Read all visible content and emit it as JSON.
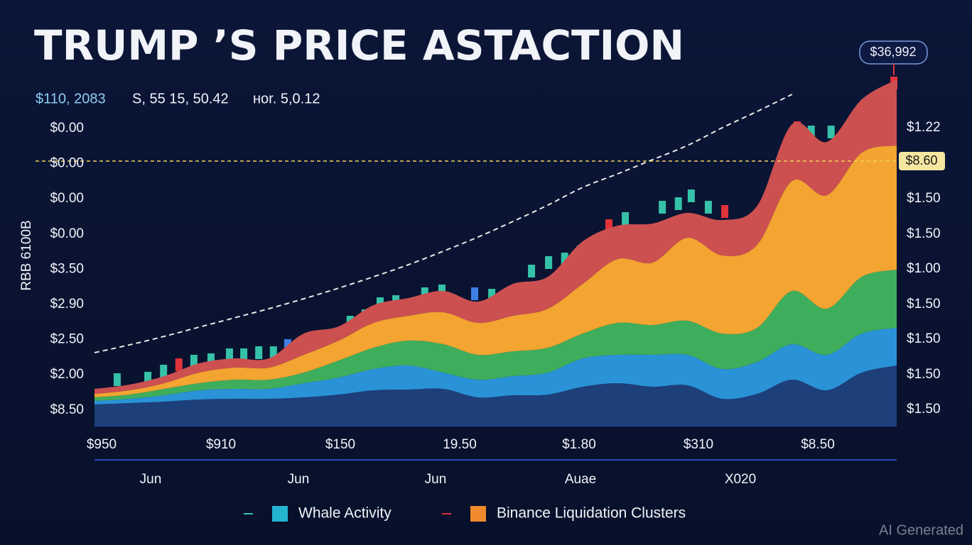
{
  "chart_data": {
    "type": "stacked_area",
    "title": "TRUMP ’S PRICE ASTACTION",
    "stats": [
      "$110, 2083",
      "S, 55 15, 50.42",
      "нor. 5,0.12"
    ],
    "y_axis_title": "RBB 6100B",
    "left_axis_labels": [
      "$0.00",
      "$0.00",
      "$0.00",
      "$0.00",
      "$3.50",
      "$2.90",
      "$2.50",
      "$2.00",
      "$8.50"
    ],
    "right_axis_labels": [
      "$1.22",
      "$1.50",
      "$1.50",
      "$1.00",
      "$1.50",
      "$1.50",
      "$1.50",
      "$1.50"
    ],
    "x_axis_labels": [
      "$950",
      "$910",
      "$150",
      "19.50",
      "$1.80",
      "$310",
      "$8.50"
    ],
    "x_axis_months": [
      "Jun",
      "Jun",
      "Jun",
      "Auae",
      "X020"
    ],
    "price_badge": "$36,992",
    "reference_line": {
      "value": 74.6,
      "label": "$8.60",
      "color": "#f2d35a"
    },
    "xlim": [
      0,
      23
    ],
    "ylim": [
      0,
      100
    ],
    "x": [
      0,
      1,
      2,
      3,
      4,
      5,
      6,
      7,
      8,
      9,
      10,
      11,
      12,
      13,
      14,
      15,
      16,
      17,
      18,
      19,
      20,
      21,
      22,
      23
    ],
    "series": [
      {
        "color": "#1d3f7a",
        "values": [
          6,
          6.4,
          6.8,
          7.4,
          7.6,
          7.6,
          8,
          8.8,
          10,
          10.2,
          10.4,
          8,
          8.6,
          8.8,
          11,
          12,
          11,
          11.4,
          7.6,
          9,
          13,
          10,
          15,
          17
        ]
      },
      {
        "color": "#2a92d6",
        "values": [
          1,
          1.2,
          1.8,
          2.6,
          2.8,
          2.8,
          4,
          4.8,
          6,
          6.8,
          4.6,
          5,
          5.4,
          6.2,
          8,
          8,
          9,
          8.6,
          8.4,
          9,
          10,
          10,
          11,
          10.6
        ]
      },
      {
        "color": "#3fae5c",
        "values": [
          1,
          1.2,
          1.8,
          2,
          2.6,
          2.6,
          3,
          4.8,
          6,
          7,
          8,
          7,
          7,
          7,
          7,
          9,
          8.4,
          9.6,
          10,
          9.6,
          15,
          13,
          16,
          16.4
        ]
      },
      {
        "color": "#f3a431",
        "values": [
          1,
          1.2,
          1.6,
          3,
          3.4,
          3.4,
          5,
          5.6,
          7,
          7,
          9,
          9,
          10,
          11,
          14,
          18,
          17.6,
          23.4,
          22,
          23.4,
          31,
          32,
          35,
          35
        ]
      },
      {
        "color": "#cc5050",
        "values": [
          1.4,
          1.6,
          2,
          2.6,
          2.6,
          2.6,
          6,
          4,
          5,
          5,
          6,
          6,
          9,
          9,
          12,
          9.4,
          11,
          7,
          10,
          11,
          16,
          15,
          15,
          18.6
        ]
      }
    ],
    "trend": {
      "color": "#e8e8e8",
      "values": [
        20.6,
        22.8,
        25.2,
        27.8,
        30.4,
        33,
        35.8,
        38.8,
        42,
        45.4,
        49.2,
        53.2,
        57.6,
        62.2,
        67.2,
        71,
        75,
        79,
        84,
        88.6,
        93.4,
        null,
        null,
        null
      ]
    },
    "candles": [
      {
        "color": "#35c2a8",
        "x": [
          0.65,
          1.53,
          1.98,
          2.85,
          3.34,
          3.87,
          4.28,
          4.71,
          5.13,
          7.33,
          7.76,
          8.19,
          8.64,
          9.47,
          9.96,
          11.39,
          12.53,
          13.02,
          13.48,
          13.93,
          15.22,
          16.28,
          16.74,
          17.11,
          17.6,
          20.55,
          21.12,
          21.57
        ],
        "values": [
          13,
          13.4,
          15.4,
          18.2,
          18.6,
          20,
          20,
          20.6,
          20.6,
          29.2,
          31,
          34.4,
          35,
          37.2,
          38,
          36.8,
          43.6,
          46,
          47,
          49,
          58.4,
          61.6,
          62.6,
          64.8,
          61.6,
          82.8,
          82.8,
          82
        ]
      },
      {
        "color": "#e0333a",
        "x": [
          2.42,
          14.75,
          18.07,
          20.15,
          22.06,
          22.92
        ],
        "values": [
          17.2,
          56.4,
          60.4,
          84,
          89.4,
          96.6
        ]
      },
      {
        "color": "#3f7fe6",
        "x": [
          5.54,
          10.9
        ],
        "values": [
          22.6,
          37.2
        ]
      }
    ],
    "legend": [
      {
        "name": "Whale Activity",
        "color": "#23b4d2",
        "dash": "#35c2a8"
      },
      {
        "name": "Binance Liquidation Clusters",
        "color": "#f08a2c",
        "dash": "#e0333a"
      }
    ],
    "watermark": "AI Generated"
  }
}
